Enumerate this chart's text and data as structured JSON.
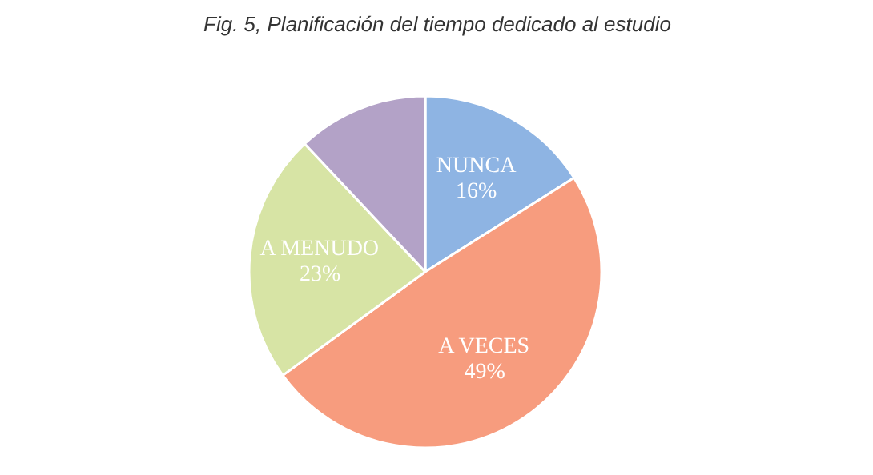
{
  "chart_data": {
    "type": "pie",
    "title": "Fig. 5, Planificación del tiempo dedicado al estudio",
    "categories": [
      "NUNCA",
      "A VECES",
      "A MENUDO",
      null
    ],
    "values": [
      16,
      49,
      23,
      12
    ],
    "value_labels": [
      "16%",
      "49%",
      "23%",
      null
    ],
    "colors": [
      "#8eb4e3",
      "#f79c7e",
      "#d7e4a5",
      "#b3a2c7"
    ]
  }
}
